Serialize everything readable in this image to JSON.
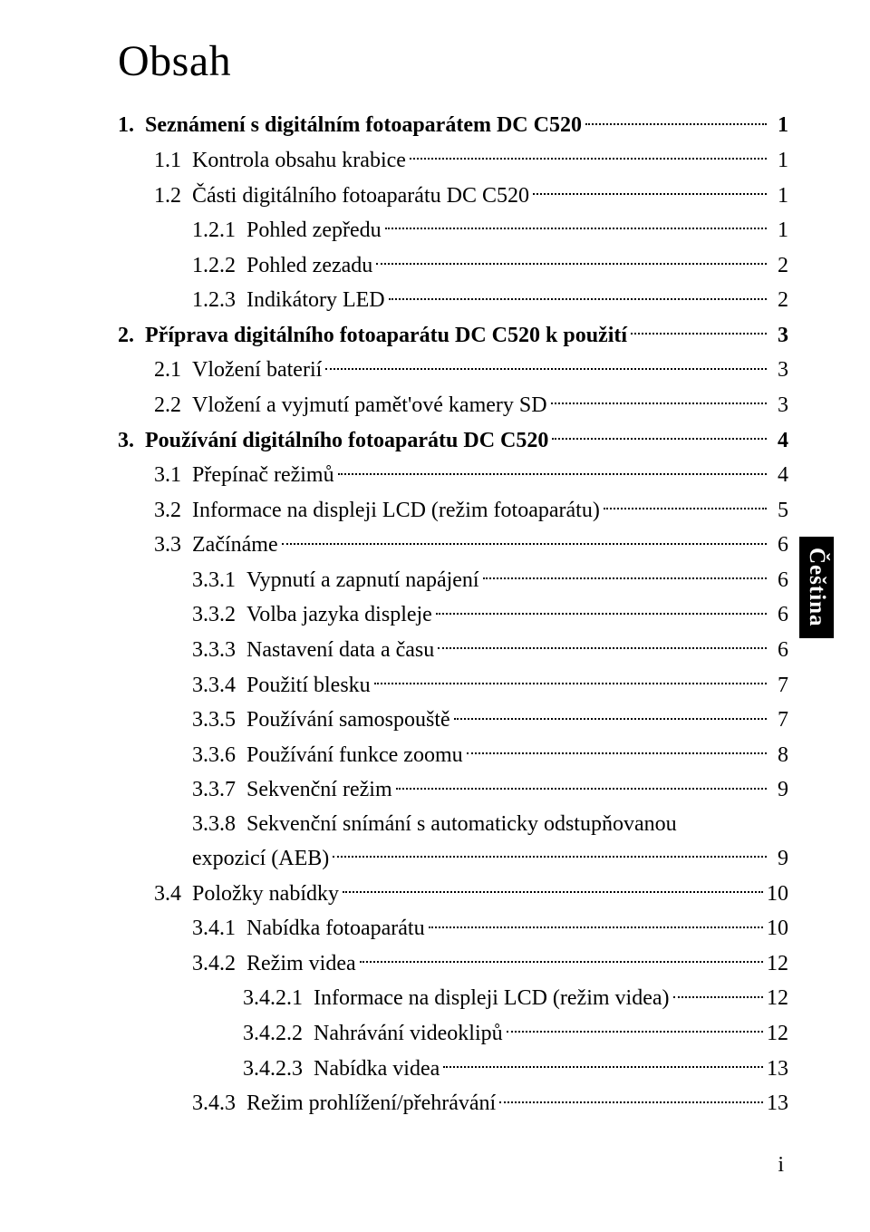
{
  "title": "Obsah",
  "sidetab": "Čeština",
  "folionum": "i",
  "entries": [
    {
      "lvl": 1,
      "num": "1.",
      "txt": "Seznámení s digitálním fotoaparátem DC C520",
      "pg": "1"
    },
    {
      "lvl": 2,
      "num": "1.1",
      "txt": "Kontrola obsahu krabice",
      "pg": "1"
    },
    {
      "lvl": 2,
      "num": "1.2",
      "txt": "Části digitálního fotoaparátu DC C520",
      "pg": "1"
    },
    {
      "lvl": 3,
      "num": "1.2.1",
      "txt": "Pohled zepředu",
      "pg": "1"
    },
    {
      "lvl": 3,
      "num": "1.2.2",
      "txt": "Pohled zezadu",
      "pg": "2"
    },
    {
      "lvl": 3,
      "num": "1.2.3",
      "txt": "Indikátory LED",
      "pg": "2"
    },
    {
      "lvl": 1,
      "num": "2.",
      "txt": "Příprava digitálního fotoaparátu DC C520 k použití",
      "pg": "3"
    },
    {
      "lvl": 2,
      "num": "2.1",
      "txt": "Vložení baterií",
      "pg": "3"
    },
    {
      "lvl": 2,
      "num": "2.2",
      "txt": "Vložení a vyjmutí pamět'ové kamery SD",
      "pg": "3"
    },
    {
      "lvl": 1,
      "num": "3.",
      "txt": "Používání digitálního fotoaparátu DC C520",
      "pg": "4"
    },
    {
      "lvl": 2,
      "num": "3.1",
      "txt": "Přepínač režimů",
      "pg": "4"
    },
    {
      "lvl": 2,
      "num": "3.2",
      "txt": "Informace na displeji LCD (režim fotoaparátu)",
      "pg": "5"
    },
    {
      "lvl": 2,
      "num": "3.3",
      "txt": "Začínáme",
      "pg": "6"
    },
    {
      "lvl": 3,
      "num": "3.3.1",
      "txt": "Vypnutí a zapnutí napájení",
      "pg": "6"
    },
    {
      "lvl": 3,
      "num": "3.3.2",
      "txt": "Volba jazyka displeje",
      "pg": "6"
    },
    {
      "lvl": 3,
      "num": "3.3.3",
      "txt": "Nastavení data a času",
      "pg": "6"
    },
    {
      "lvl": 3,
      "num": "3.3.4",
      "txt": "Použití blesku",
      "pg": "7"
    },
    {
      "lvl": 3,
      "num": "3.3.5",
      "txt": "Používání samospouště",
      "pg": "7"
    },
    {
      "lvl": 3,
      "num": "3.3.6",
      "txt": "Používání funkce zoomu",
      "pg": "8"
    },
    {
      "lvl": 3,
      "num": "3.3.7",
      "txt": "Sekvenční režim",
      "pg": "9"
    },
    {
      "lvl": 3,
      "num": "3.3.8",
      "txt": "Sekvenční snímání s automaticky odstupňovanou",
      "wrap": "expozicí (AEB)",
      "pg": "9"
    },
    {
      "lvl": 2,
      "num": "3.4",
      "txt": "Položky nabídky",
      "pg": "10"
    },
    {
      "lvl": 3,
      "num": "3.4.1",
      "txt": "Nabídka fotoaparátu",
      "pg": "10"
    },
    {
      "lvl": 3,
      "num": "3.4.2",
      "txt": "Režim videa",
      "pg": "12"
    },
    {
      "lvl": 4,
      "num": "3.4.2.1",
      "txt": "Informace na displeji LCD (režim videa)",
      "pg": "12"
    },
    {
      "lvl": 4,
      "num": "3.4.2.2",
      "txt": "Nahrávání videoklipů",
      "pg": "12"
    },
    {
      "lvl": 4,
      "num": "3.4.2.3",
      "txt": "Nabídka videa",
      "pg": "13"
    },
    {
      "lvl": 3,
      "num": "3.4.3",
      "txt": "Režim prohlížení/přehrávání",
      "pg": "13"
    }
  ]
}
